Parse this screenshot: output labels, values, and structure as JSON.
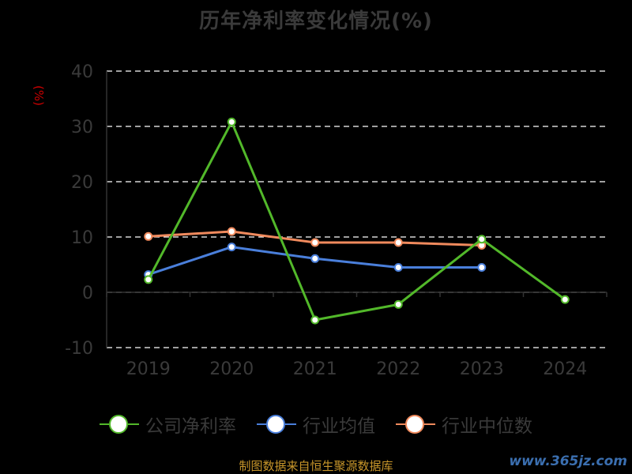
{
  "chart_data": {
    "type": "line",
    "title": "历年净利率变化情况(%)",
    "ylabel": "(%)",
    "xlabel": "",
    "categories": [
      "2019",
      "2020",
      "2021",
      "2022",
      "2023",
      "2024"
    ],
    "ylim": [
      -10,
      40
    ],
    "yticks": [
      40,
      30,
      20,
      10,
      0,
      -10
    ],
    "grid": "horizontal-dashed",
    "legend_position": "bottom",
    "series": [
      {
        "name": "公司净利率",
        "color": "#52b82a",
        "values": [
          2.3,
          30.8,
          -5.0,
          -2.2,
          9.6,
          -1.3
        ]
      },
      {
        "name": "行业均值",
        "color": "#4a7fdb",
        "values": [
          3.2,
          8.2,
          6.1,
          4.5,
          4.5,
          null
        ]
      },
      {
        "name": "行业中位数",
        "color": "#f08a5d",
        "values": [
          10.1,
          11.0,
          9.0,
          9.0,
          8.5,
          null
        ]
      }
    ]
  },
  "footer": "制图数据来自恒生聚源数据库",
  "watermark": "www.365jz.com"
}
